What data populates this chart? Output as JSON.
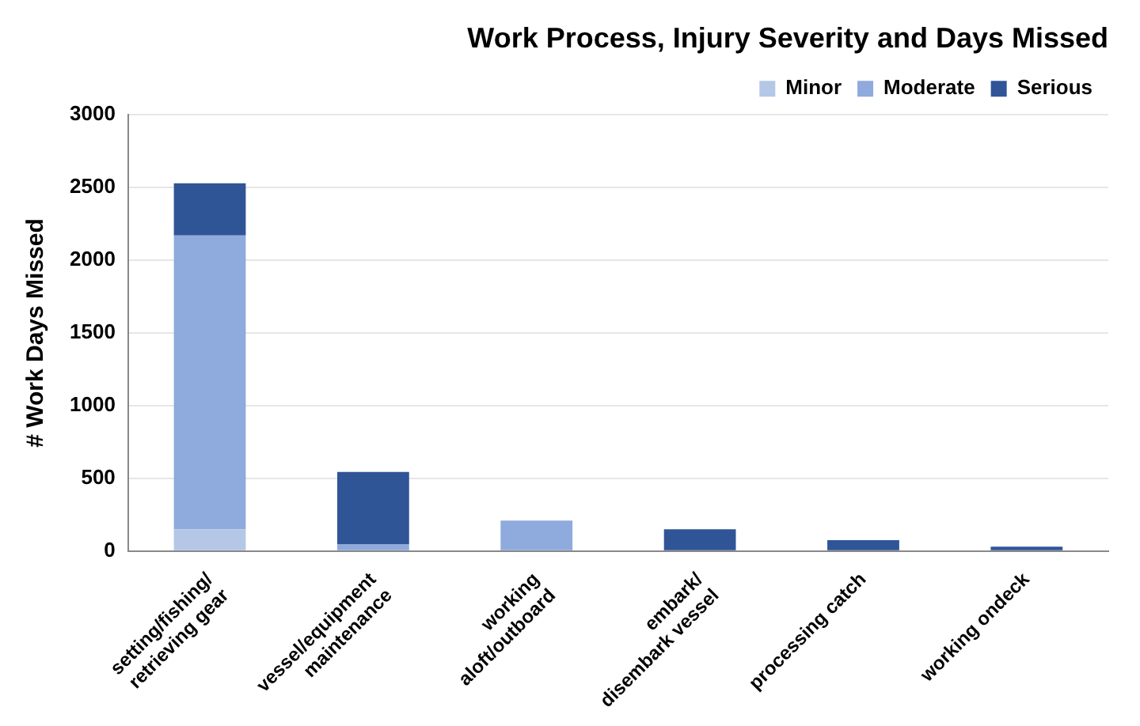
{
  "chart_data": {
    "type": "bar",
    "title": "Work Process, Injury Severity and Days Missed",
    "ylabel": "# Work Days Missed",
    "categories": [
      "setting/fishing/ retrieving gear",
      "vessel/equipment maintenance",
      "working aloft/outboard",
      "embark/ disembark vessel",
      "processing catch",
      "working ondeck"
    ],
    "stacked": true,
    "series": [
      {
        "name": "Minor",
        "color": "#b4c7e7",
        "values": [
          150,
          0,
          0,
          0,
          0,
          0
        ]
      },
      {
        "name": "Moderate",
        "color": "#8faadc",
        "values": [
          2020,
          45,
          210,
          0,
          0,
          0
        ]
      },
      {
        "name": "Serious",
        "color": "#2f5597",
        "values": [
          360,
          500,
          0,
          150,
          75,
          30
        ]
      }
    ],
    "ylim": [
      0,
      3000
    ],
    "yticks": [
      0,
      500,
      1000,
      1500,
      2000,
      2500,
      3000
    ],
    "grid": "y",
    "legend": "top right"
  }
}
